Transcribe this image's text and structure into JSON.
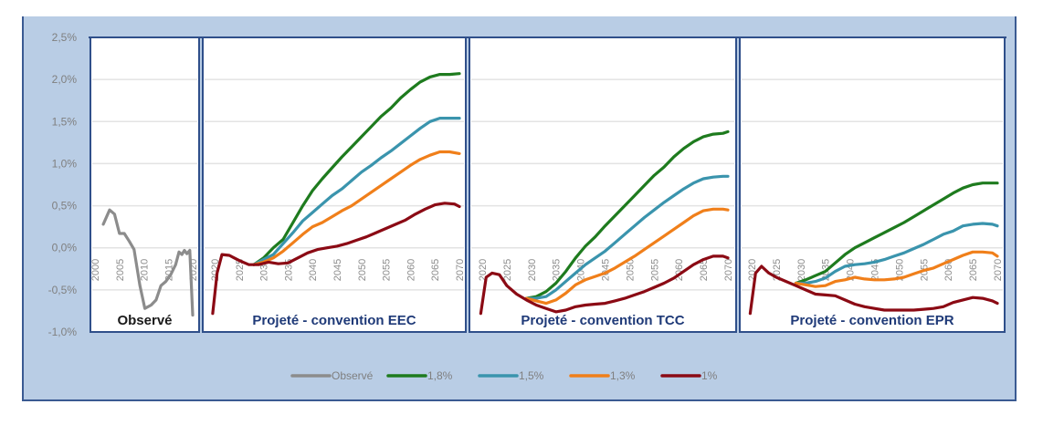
{
  "chart_data": {
    "type": "line",
    "title": "",
    "ylabel": "",
    "ylim": [
      -1.0,
      2.5
    ],
    "y_ticks": [
      "2,5%",
      "2,0%",
      "1,5%",
      "1,0%",
      "0,5%",
      "0,0%",
      "-0,5%",
      "-1,0%"
    ],
    "y_tick_values": [
      2.5,
      2.0,
      1.5,
      1.0,
      0.5,
      0.0,
      -0.5,
      -1.0
    ],
    "grid": true,
    "legend_position": "bottom",
    "legend": [
      {
        "name": "Observé",
        "color": "#8c8c8c"
      },
      {
        "name": "1,8%",
        "color": "#1e7b1e"
      },
      {
        "name": "1,5%",
        "color": "#3a94ad"
      },
      {
        "name": "1,3%",
        "color": "#f07f1a"
      },
      {
        "name": "1%",
        "color": "#8b0a14"
      }
    ],
    "panels": [
      {
        "title": "Observé",
        "title_color": "#1a1a1a",
        "x_ticks": [
          "2000",
          "2005",
          "2010",
          "2015",
          "2020"
        ],
        "xlim": [
          2000,
          2021
        ],
        "series": [
          {
            "name": "Observé",
            "color": "#8c8c8c",
            "x": [
              2001.7,
              2003,
              2004,
              2005,
              2006,
              2007,
              2008,
              2009.2,
              2010.2,
              2011.5,
              2012.5,
              2013.5,
              2014.5,
              2015.5,
              2016.5,
              2017.2,
              2017.8,
              2018.3,
              2018.8,
              2019.4,
              2020.0
            ],
            "y": [
              0.28,
              0.45,
              0.4,
              0.17,
              0.17,
              0.08,
              -0.02,
              -0.45,
              -0.72,
              -0.68,
              -0.62,
              -0.45,
              -0.4,
              -0.32,
              -0.2,
              -0.05,
              -0.08,
              -0.03,
              -0.07,
              -0.03,
              -0.8
            ]
          }
        ]
      },
      {
        "title": "Projeté - convention EEC",
        "title_color": "#1f3a78",
        "x_ticks": [
          "2020",
          "2025",
          "2030",
          "2035",
          "2040",
          "2045",
          "2050",
          "2055",
          "2060",
          "2065",
          "2070"
        ],
        "xlim": [
          2019,
          2071
        ],
        "series": [
          {
            "name": "1,8%",
            "color": "#1e7b1e",
            "x": [
              2028,
              2030,
              2032,
              2034,
              2036,
              2038,
              2040,
              2042,
              2044,
              2046,
              2048,
              2050,
              2052,
              2054,
              2056,
              2058,
              2060,
              2062,
              2064,
              2066,
              2068,
              2070
            ],
            "y": [
              -0.2,
              -0.12,
              0.0,
              0.1,
              0.3,
              0.5,
              0.68,
              0.82,
              0.95,
              1.08,
              1.2,
              1.32,
              1.44,
              1.56,
              1.66,
              1.78,
              1.88,
              1.97,
              2.03,
              2.06,
              2.06,
              2.07
            ]
          },
          {
            "name": "1,5%",
            "color": "#3a94ad",
            "x": [
              2028,
              2030,
              2032,
              2034,
              2036,
              2038,
              2040,
              2042,
              2044,
              2046,
              2048,
              2050,
              2052,
              2054,
              2056,
              2058,
              2060,
              2062,
              2064,
              2066,
              2068,
              2070
            ],
            "y": [
              -0.2,
              -0.14,
              -0.08,
              0.05,
              0.18,
              0.32,
              0.42,
              0.52,
              0.62,
              0.7,
              0.8,
              0.9,
              0.98,
              1.07,
              1.15,
              1.24,
              1.33,
              1.42,
              1.5,
              1.54,
              1.54,
              1.54
            ]
          },
          {
            "name": "1,3%",
            "color": "#f07f1a",
            "x": [
              2028,
              2030,
              2032,
              2034,
              2036,
              2038,
              2040,
              2042,
              2044,
              2046,
              2048,
              2050,
              2052,
              2054,
              2056,
              2058,
              2060,
              2062,
              2064,
              2066,
              2068,
              2070
            ],
            "y": [
              -0.2,
              -0.17,
              -0.12,
              -0.04,
              0.06,
              0.16,
              0.25,
              0.3,
              0.37,
              0.44,
              0.5,
              0.58,
              0.66,
              0.74,
              0.82,
              0.9,
              0.98,
              1.05,
              1.1,
              1.14,
              1.14,
              1.12
            ]
          },
          {
            "name": "1%",
            "color": "#8b0a14",
            "x": [
              2019.6,
              2020.5,
              2021.5,
              2023,
              2025,
              2027,
              2029,
              2031,
              2033,
              2035,
              2037,
              2039,
              2041,
              2043,
              2045,
              2047,
              2049,
              2051,
              2053,
              2055,
              2057,
              2059,
              2061,
              2063,
              2065,
              2067,
              2069,
              2070
            ],
            "y": [
              -0.78,
              -0.3,
              -0.08,
              -0.09,
              -0.15,
              -0.2,
              -0.2,
              -0.17,
              -0.19,
              -0.18,
              -0.12,
              -0.06,
              -0.02,
              0.0,
              0.02,
              0.05,
              0.09,
              0.13,
              0.18,
              0.23,
              0.28,
              0.33,
              0.4,
              0.46,
              0.51,
              0.53,
              0.52,
              0.49
            ]
          }
        ]
      },
      {
        "title": "Projeté - convention TCC",
        "title_color": "#1f3a78",
        "x_ticks": [
          "2020",
          "2025",
          "2030",
          "2035",
          "2040",
          "2045",
          "2050",
          "2055",
          "2060",
          "2065",
          "2070"
        ],
        "xlim": [
          2019,
          2071
        ],
        "series": [
          {
            "name": "1,8%",
            "color": "#1e7b1e",
            "x": [
              2029,
              2031,
              2033,
              2035,
              2037,
              2039,
              2041,
              2043,
              2045,
              2047,
              2049,
              2051,
              2053,
              2055,
              2057,
              2059,
              2061,
              2063,
              2065,
              2067,
              2069,
              2070
            ],
            "y": [
              -0.6,
              -0.58,
              -0.52,
              -0.42,
              -0.28,
              -0.12,
              0.02,
              0.13,
              0.26,
              0.38,
              0.5,
              0.62,
              0.74,
              0.86,
              0.96,
              1.08,
              1.18,
              1.26,
              1.32,
              1.35,
              1.36,
              1.38
            ]
          },
          {
            "name": "1,5%",
            "color": "#3a94ad",
            "x": [
              2029,
              2031,
              2033,
              2035,
              2037,
              2039,
              2041,
              2043,
              2045,
              2047,
              2049,
              2051,
              2053,
              2055,
              2057,
              2059,
              2061,
              2063,
              2065,
              2067,
              2069,
              2070
            ],
            "y": [
              -0.6,
              -0.6,
              -0.58,
              -0.5,
              -0.4,
              -0.3,
              -0.2,
              -0.12,
              -0.04,
              0.06,
              0.16,
              0.26,
              0.36,
              0.45,
              0.54,
              0.62,
              0.7,
              0.77,
              0.82,
              0.84,
              0.85,
              0.85
            ]
          },
          {
            "name": "1,3%",
            "color": "#f07f1a",
            "x": [
              2029,
              2031,
              2033,
              2035,
              2037,
              2039,
              2041,
              2043,
              2045,
              2047,
              2049,
              2051,
              2053,
              2055,
              2057,
              2059,
              2061,
              2063,
              2065,
              2067,
              2069,
              2070
            ],
            "y": [
              -0.6,
              -0.63,
              -0.66,
              -0.62,
              -0.54,
              -0.44,
              -0.38,
              -0.34,
              -0.3,
              -0.24,
              -0.17,
              -0.1,
              -0.02,
              0.06,
              0.14,
              0.22,
              0.3,
              0.38,
              0.44,
              0.46,
              0.46,
              0.45
            ]
          },
          {
            "name": "1%",
            "color": "#8b0a14",
            "x": [
              2019.7,
              2020.8,
              2022,
              2023.5,
              2025,
              2027,
              2029,
              2031,
              2033,
              2035,
              2037,
              2039,
              2041,
              2043,
              2045,
              2047,
              2049,
              2051,
              2053,
              2055,
              2057,
              2059,
              2061,
              2063,
              2065,
              2067,
              2069,
              2070
            ],
            "y": [
              -0.78,
              -0.35,
              -0.3,
              -0.32,
              -0.45,
              -0.55,
              -0.62,
              -0.68,
              -0.72,
              -0.76,
              -0.74,
              -0.7,
              -0.68,
              -0.67,
              -0.66,
              -0.63,
              -0.6,
              -0.56,
              -0.52,
              -0.47,
              -0.42,
              -0.36,
              -0.28,
              -0.2,
              -0.14,
              -0.1,
              -0.1,
              -0.12
            ]
          }
        ]
      },
      {
        "title": "Projeté - convention EPR",
        "title_color": "#1f3a78",
        "x_ticks": [
          "2020",
          "2025",
          "2030",
          "2035",
          "2040",
          "2045",
          "2050",
          "2055",
          "2060",
          "2065",
          "2070"
        ],
        "xlim": [
          2019,
          2071
        ],
        "series": [
          {
            "name": "1,8%",
            "color": "#1e7b1e",
            "x": [
              2029,
              2031,
              2033,
              2035,
              2037,
              2039,
              2041,
              2043,
              2045,
              2047,
              2049,
              2051,
              2053,
              2055,
              2057,
              2059,
              2061,
              2063,
              2065,
              2067,
              2069,
              2070
            ],
            "y": [
              -0.42,
              -0.38,
              -0.33,
              -0.28,
              -0.18,
              -0.08,
              0.0,
              0.06,
              0.12,
              0.18,
              0.24,
              0.3,
              0.37,
              0.44,
              0.51,
              0.58,
              0.65,
              0.71,
              0.75,
              0.77,
              0.77,
              0.77
            ]
          },
          {
            "name": "1,5%",
            "color": "#3a94ad",
            "x": [
              2029,
              2031,
              2033,
              2035,
              2037,
              2039,
              2041,
              2043,
              2045,
              2047,
              2049,
              2051,
              2053,
              2055,
              2057,
              2059,
              2061,
              2063,
              2065,
              2067,
              2069,
              2070
            ],
            "y": [
              -0.42,
              -0.42,
              -0.4,
              -0.36,
              -0.28,
              -0.22,
              -0.2,
              -0.19,
              -0.17,
              -0.14,
              -0.1,
              -0.06,
              -0.01,
              0.04,
              0.1,
              0.16,
              0.2,
              0.26,
              0.28,
              0.29,
              0.28,
              0.26
            ]
          },
          {
            "name": "1,3%",
            "color": "#f07f1a",
            "x": [
              2029,
              2031,
              2033,
              2035,
              2037,
              2039,
              2041,
              2043,
              2045,
              2047,
              2049,
              2051,
              2053,
              2055,
              2057,
              2059,
              2061,
              2063,
              2065,
              2067,
              2069,
              2070
            ],
            "y": [
              -0.42,
              -0.44,
              -0.46,
              -0.45,
              -0.4,
              -0.38,
              -0.35,
              -0.37,
              -0.38,
              -0.38,
              -0.37,
              -0.35,
              -0.31,
              -0.27,
              -0.24,
              -0.19,
              -0.14,
              -0.09,
              -0.05,
              -0.05,
              -0.06,
              -0.1
            ]
          },
          {
            "name": "1%",
            "color": "#8b0a14",
            "x": [
              2019.7,
              2020.8,
              2022,
              2023.5,
              2025,
              2027,
              2029,
              2031,
              2033,
              2035,
              2037,
              2039,
              2041,
              2043,
              2045,
              2047,
              2049,
              2051,
              2053,
              2055,
              2057,
              2059,
              2061,
              2063,
              2065,
              2067,
              2069,
              2070
            ],
            "y": [
              -0.78,
              -0.3,
              -0.22,
              -0.3,
              -0.35,
              -0.4,
              -0.45,
              -0.5,
              -0.55,
              -0.56,
              -0.57,
              -0.62,
              -0.67,
              -0.7,
              -0.72,
              -0.74,
              -0.74,
              -0.74,
              -0.74,
              -0.73,
              -0.72,
              -0.7,
              -0.65,
              -0.62,
              -0.59,
              -0.6,
              -0.63,
              -0.66
            ]
          }
        ]
      }
    ]
  }
}
